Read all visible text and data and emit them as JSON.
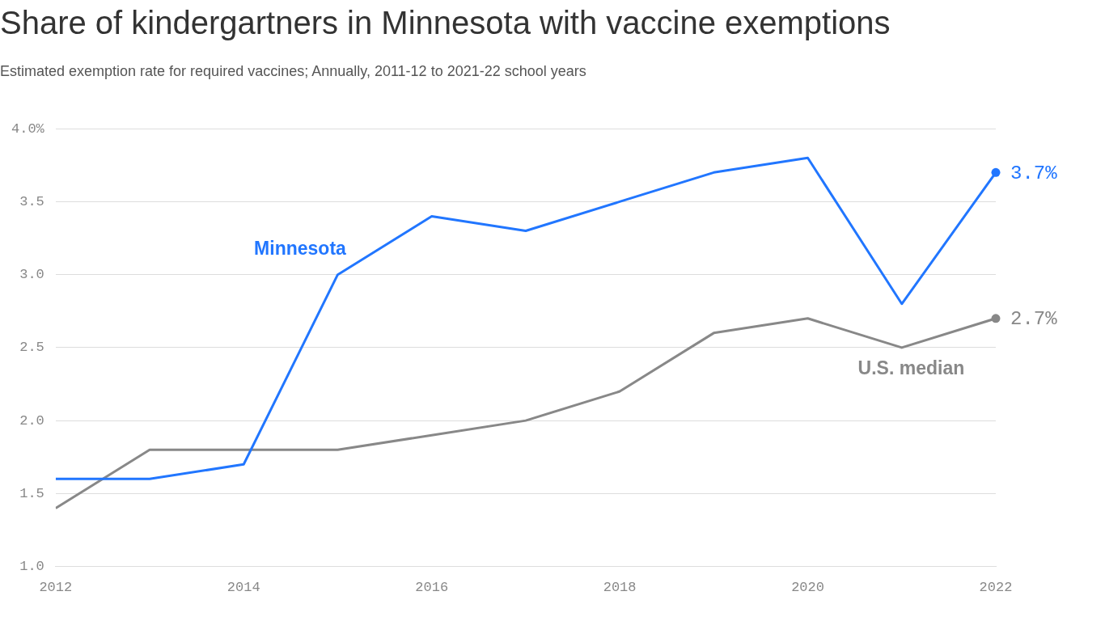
{
  "chart_data": {
    "type": "line",
    "title": "Share of kindergartners in Minnesota with vaccine exemptions",
    "subtitle": "Estimated exemption rate for required vaccines; Annually, 2011-12 to 2021-22 school years",
    "x": [
      2012,
      2013,
      2014,
      2015,
      2016,
      2017,
      2018,
      2019,
      2020,
      2021,
      2022
    ],
    "series": [
      {
        "name": "Minnesota",
        "color": "#2176ff",
        "values": [
          1.6,
          1.6,
          1.7,
          3.0,
          3.4,
          3.3,
          3.5,
          3.7,
          3.8,
          2.8,
          3.7
        ],
        "value_labels": [
          null,
          null,
          null,
          null,
          null,
          null,
          null,
          null,
          null,
          null,
          "3.7%"
        ]
      },
      {
        "name": "U.S. median",
        "color": "#888888",
        "values": [
          1.4,
          1.8,
          1.8,
          1.8,
          1.9,
          2.0,
          2.2,
          2.6,
          2.7,
          2.5,
          2.7
        ],
        "value_labels": [
          null,
          null,
          null,
          null,
          null,
          null,
          null,
          null,
          null,
          null,
          "2.7%"
        ]
      }
    ],
    "xlim": [
      2012,
      2022
    ],
    "xticks": [
      2012,
      2014,
      2016,
      2018,
      2020,
      2022
    ],
    "ylim": [
      1.0,
      4.0
    ],
    "yticks": [
      {
        "value": 1.0,
        "label": "1.0"
      },
      1.5,
      {
        "value": 2.0,
        "label": "2.0"
      },
      2.5,
      {
        "value": 3.0,
        "label": "3.0"
      },
      3.5,
      {
        "value": 4.0,
        "label": "4.0%"
      }
    ],
    "grid": "y",
    "legend": false
  }
}
